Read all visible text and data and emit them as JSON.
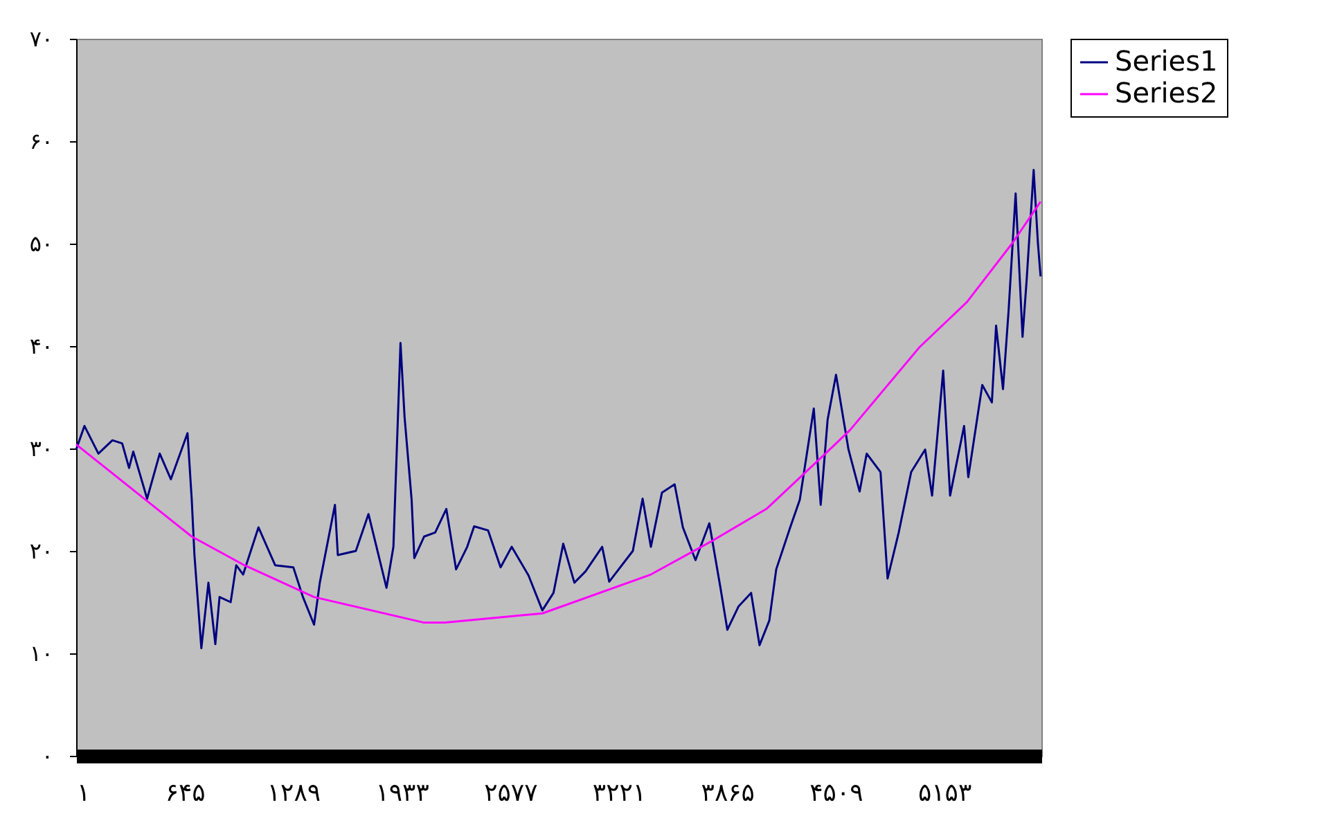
{
  "chart_data": {
    "type": "line",
    "x": [
      1,
      50,
      133,
      216,
      274,
      315,
      340,
      422,
      497,
      563,
      662,
      687,
      703,
      744,
      786,
      827,
      852,
      918,
      951,
      992,
      1083,
      1182,
      1290,
      1347,
      1413,
      1447,
      1537,
      1554,
      1661,
      1736,
      1843,
      1884,
      1926,
      1950,
      1992,
      2008,
      2066,
      2132,
      2198,
      2256,
      2322,
      2363,
      2446,
      2520,
      2586,
      2686,
      2768,
      2834,
      2892,
      2958,
      3024,
      3123,
      3165,
      3305,
      3363,
      3412,
      3478,
      3553,
      3602,
      3677,
      3759,
      3825,
      3866,
      3933,
      4007,
      4057,
      4115,
      4156,
      4239,
      4296,
      4379,
      4420,
      4461,
      4511,
      4585,
      4651,
      4693,
      4775,
      4817,
      4883,
      4957,
      5040,
      5081,
      5147,
      5188,
      5271,
      5296,
      5379,
      5436,
      5461,
      5502,
      5535,
      5577,
      5618,
      5643,
      5684,
      5709,
      5725
    ],
    "series": [
      {
        "name": "Series1",
        "color": "#000080",
        "values": [
          29.9,
          32.2,
          29.5,
          30.8,
          30.5,
          28.1,
          29.7,
          25.1,
          29.5,
          27.0,
          31.5,
          25.0,
          19.6,
          10.5,
          16.9,
          10.9,
          15.5,
          15.0,
          18.6,
          17.7,
          22.3,
          18.6,
          18.4,
          15.5,
          12.8,
          16.9,
          24.5,
          19.6,
          20.0,
          23.6,
          16.4,
          20.4,
          40.3,
          33.1,
          25.0,
          19.3,
          21.4,
          21.8,
          24.1,
          18.2,
          20.4,
          22.4,
          22.0,
          18.4,
          20.4,
          17.6,
          14.2,
          15.9,
          20.7,
          16.9,
          18.0,
          20.4,
          17.0,
          20.0,
          25.1,
          20.4,
          25.7,
          26.5,
          22.3,
          19.1,
          22.7,
          16.4,
          12.3,
          14.6,
          15.9,
          10.8,
          13.2,
          18.2,
          22.3,
          25.0,
          33.9,
          24.5,
          32.8,
          37.2,
          29.9,
          25.8,
          29.5,
          27.7,
          17.3,
          21.8,
          27.7,
          29.9,
          25.4,
          37.6,
          25.4,
          32.2,
          27.2,
          36.2,
          34.5,
          42.0,
          35.8,
          43.4,
          54.9,
          40.9,
          46.6,
          57.2,
          50.1,
          46.8
        ]
      },
      {
        "name": "Series2",
        "color": "#ff00ff",
        "x": [
          1,
          687,
          1000,
          1413,
          2066,
          2190,
          2768,
          3412,
          3767,
          4098,
          4461,
          4594,
          5007,
          5288,
          5560,
          5725
        ],
        "values": [
          30.4,
          21.4,
          18.6,
          15.5,
          13.0,
          13.0,
          13.9,
          17.7,
          20.9,
          24.1,
          29.7,
          31.8,
          39.9,
          44.3,
          50.1,
          54.1
        ]
      }
    ],
    "xlim": [
      1,
      5730
    ],
    "xticks": [
      {
        "value": 1,
        "label": "۱"
      },
      {
        "value": 645,
        "label": "۶۴۵"
      },
      {
        "value": 1289,
        "label": "۱۲۸۹"
      },
      {
        "value": 1933,
        "label": "۱۹۳۳"
      },
      {
        "value": 2577,
        "label": "۲۵۷۷"
      },
      {
        "value": 3221,
        "label": "۳۲۲۱"
      },
      {
        "value": 3865,
        "label": "۳۸۶۵"
      },
      {
        "value": 4509,
        "label": "۴۵۰۹"
      },
      {
        "value": 5153,
        "label": "۵۱۵۳"
      }
    ],
    "ylim": [
      0,
      70
    ],
    "yticks": [
      {
        "value": 0,
        "label": "۰"
      },
      {
        "value": 10,
        "label": "۱۰"
      },
      {
        "value": 20,
        "label": "۲۰"
      },
      {
        "value": 30,
        "label": "۳۰"
      },
      {
        "value": 40,
        "label": "۴۰"
      },
      {
        "value": 50,
        "label": "۵۰"
      },
      {
        "value": 60,
        "label": "۶۰"
      },
      {
        "value": 70,
        "label": "۷۰"
      }
    ],
    "grid": false,
    "legend": "right",
    "line_style": "solid",
    "marker": "none"
  }
}
